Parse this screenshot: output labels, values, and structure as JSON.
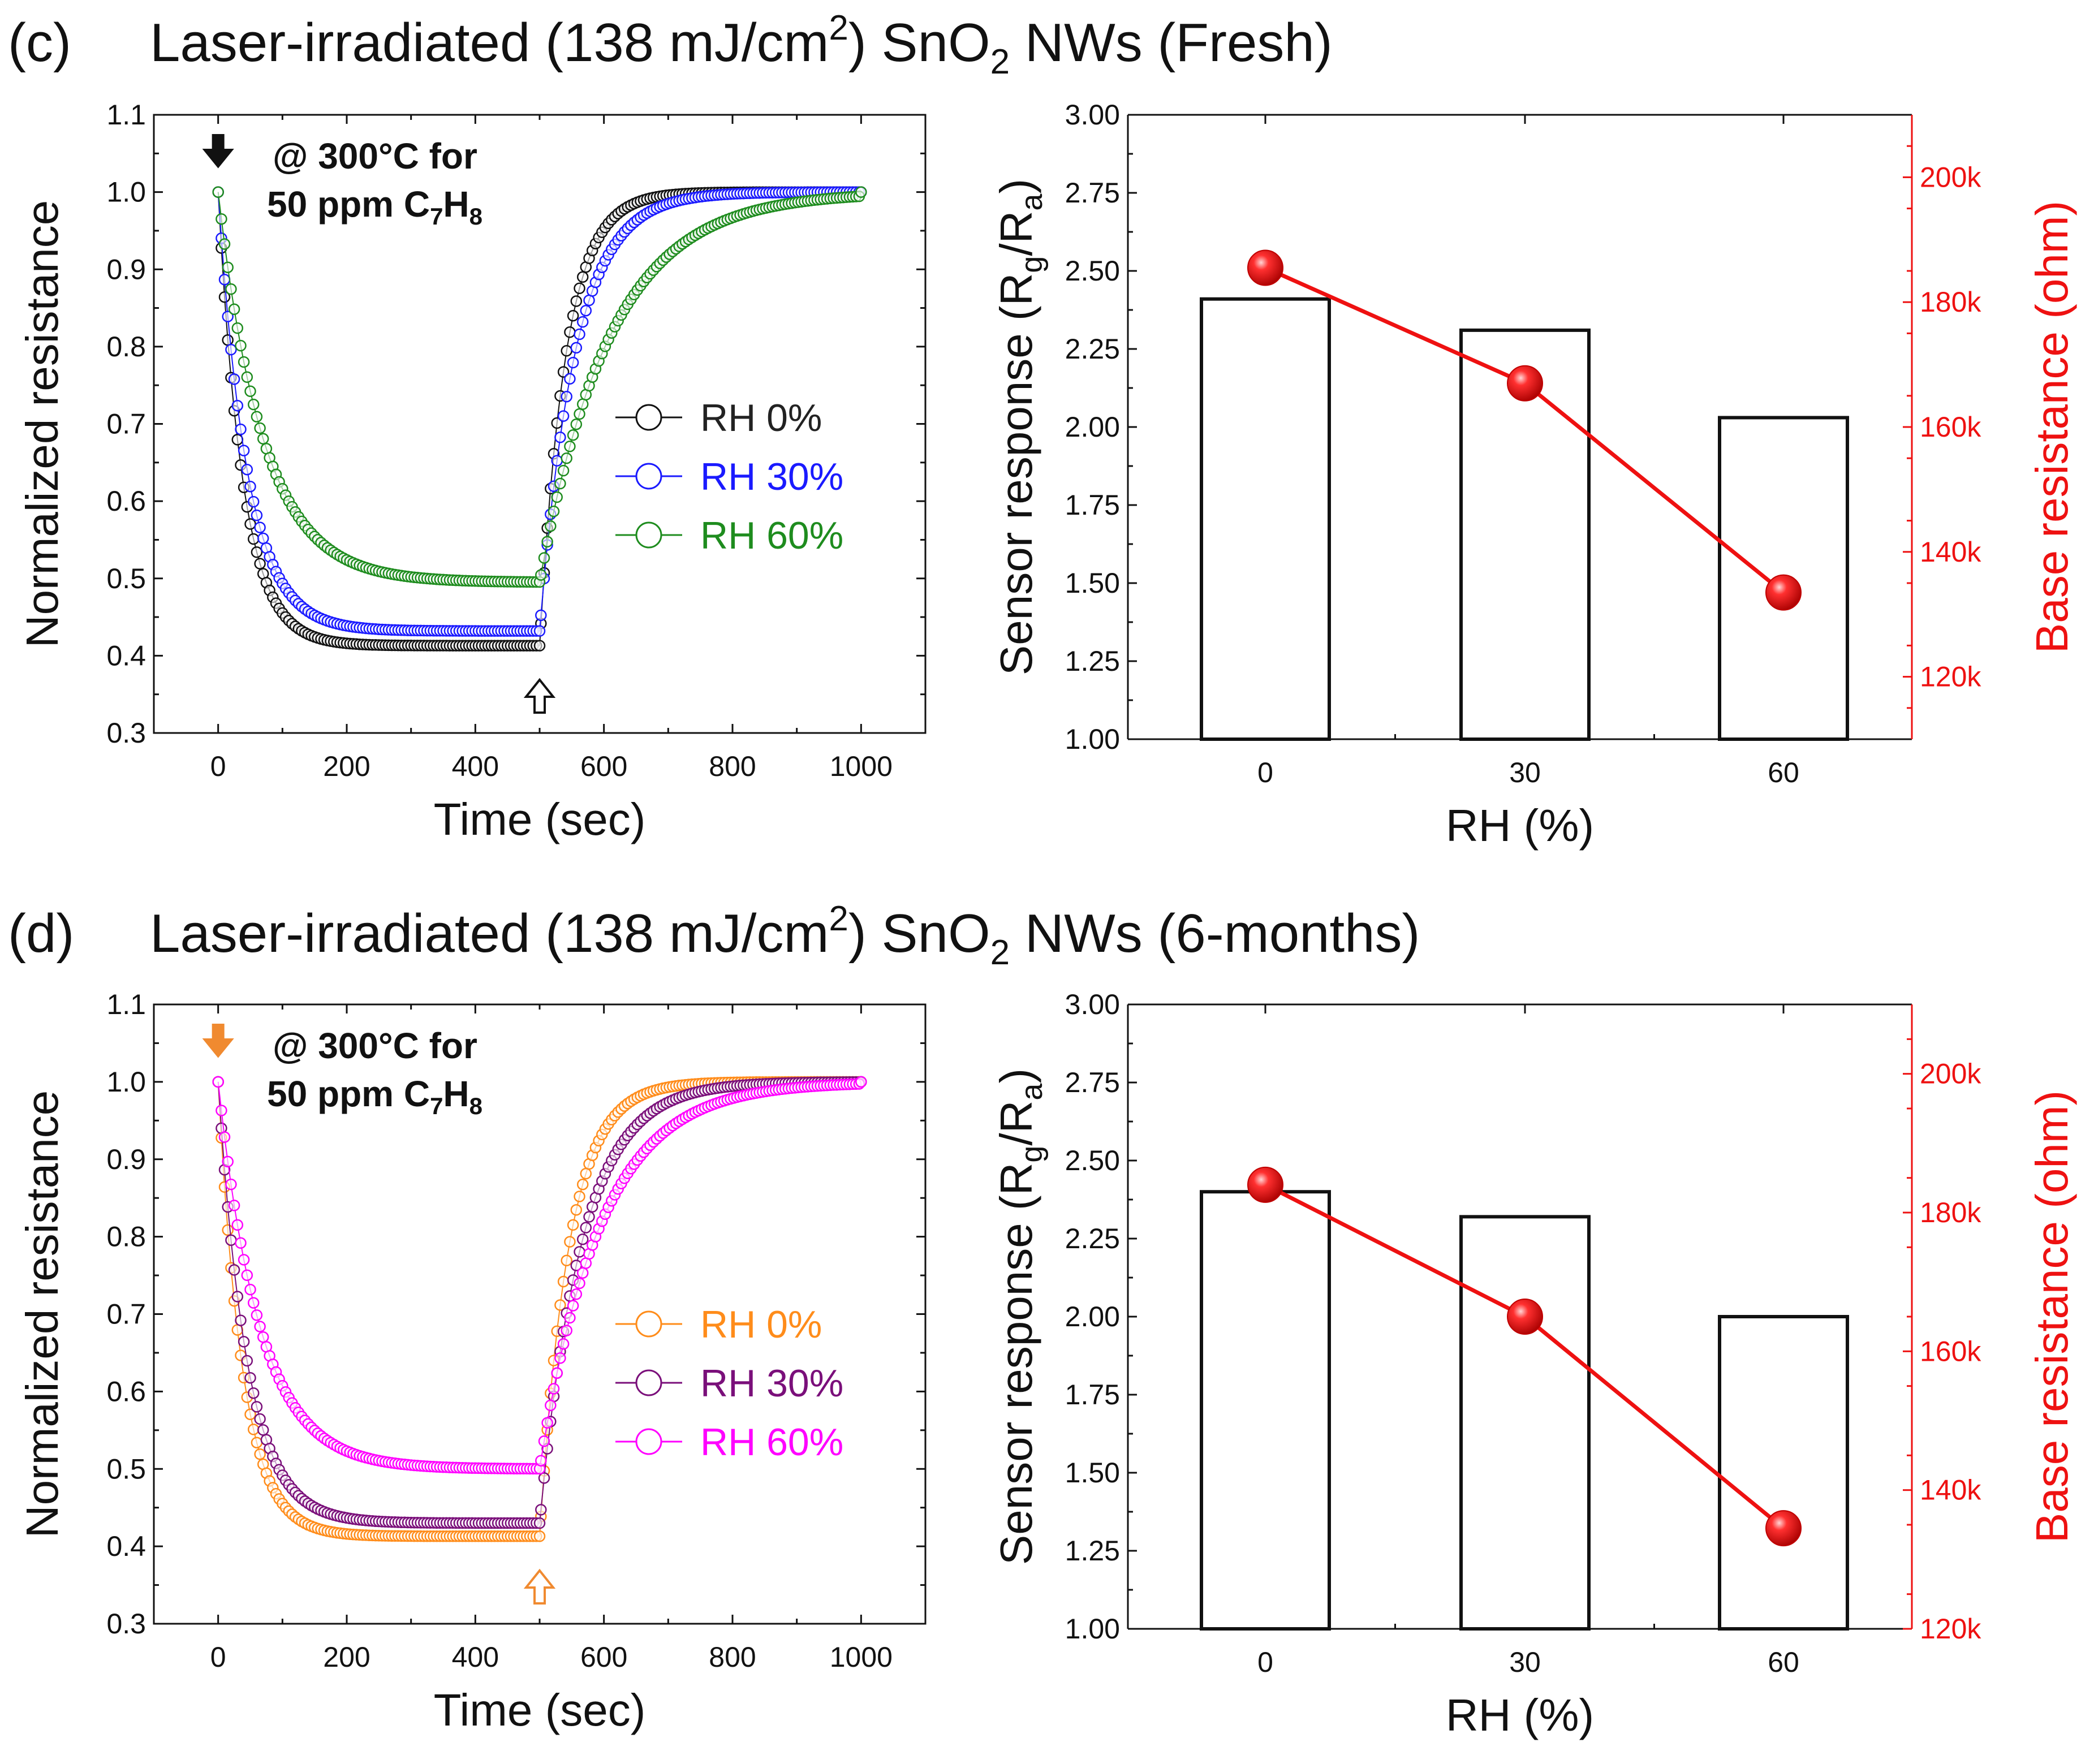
{
  "figure": {
    "rows": [
      {
        "letter": "(c)",
        "title_prefix": "Laser-irradiated (138 mJ/cm",
        "title_sup": "2",
        "title_mid1": ") SnO",
        "title_sub": "2",
        "title_mid2": " NWs",
        "title_suffix": "(Fresh)"
      },
      {
        "letter": "(d)",
        "title_prefix": "Laser-irradiated (138 mJ/cm",
        "title_sup": "2",
        "title_mid1": ") SnO",
        "title_sub": "2",
        "title_mid2": " NWs",
        "title_suffix": "(6-months)"
      }
    ]
  },
  "chart_data": [
    {
      "id": "c-left",
      "type": "scatter",
      "title": "",
      "xlabel": "Time (sec)",
      "ylabel": "Normalized resistance",
      "xlim": [
        -100,
        1100
      ],
      "ylim": [
        0.3,
        1.1
      ],
      "xticks": [
        0,
        200,
        400,
        600,
        800,
        1000
      ],
      "yticks": [
        0.3,
        0.4,
        0.5,
        0.6,
        0.7,
        0.8,
        0.9,
        1.0,
        1.1
      ],
      "ytick_labels": [
        "0.3",
        "0.4",
        "0.5",
        "0.6",
        "0.7",
        "0.8",
        "0.9",
        "1.0",
        "1.1"
      ],
      "annotation_line1": "@ 300°C for",
      "annotation_line2_prefix": "50 ppm C",
      "annotation_sub1": "7",
      "annotation_mid": "H",
      "annotation_sub2": "8",
      "gas_in_time": 0,
      "gas_out_time": 500,
      "arrow_color": "#111111",
      "legend_position": "center-right",
      "series": [
        {
          "name": "RH 0%",
          "color": "#111111",
          "label_color": "#222222",
          "baseline": 0.413,
          "tau_fall": 38,
          "tau_rise": 40
        },
        {
          "name": "RH 30%",
          "color": "#1a1aff",
          "label_color": "#1a1aff",
          "baseline": 0.432,
          "tau_fall": 45,
          "tau_rise": 55
        },
        {
          "name": "RH 60%",
          "color": "#1e8c1e",
          "label_color": "#1e8c1e",
          "baseline": 0.495,
          "tau_fall": 70,
          "tau_rise": 110
        }
      ]
    },
    {
      "id": "c-right",
      "type": "bar",
      "xlabel": "RH (%)",
      "ylabel_prefix": "Sensor response (R",
      "ylabel_sub1": "g",
      "ylabel_mid": "/R",
      "ylabel_sub2": "a",
      "ylabel_suffix": ")",
      "y2label": "Base resistance (ohm)",
      "categories": [
        "0",
        "30",
        "60"
      ],
      "values": [
        2.41,
        2.31,
        2.03
      ],
      "ylim": [
        1.0,
        3.0
      ],
      "yticks": [
        1.0,
        1.25,
        1.5,
        1.75,
        2.0,
        2.25,
        2.5,
        2.75,
        3.0
      ],
      "ytick_labels": [
        "1.00",
        "1.25",
        "1.50",
        "1.75",
        "2.00",
        "2.25",
        "2.50",
        "2.75",
        "3.00"
      ],
      "y2lim": [
        110000,
        210000
      ],
      "y2ticks": [
        120000,
        140000,
        160000,
        180000,
        200000
      ],
      "y2tick_labels": [
        "120k",
        "140k",
        "160k",
        "180k",
        "200k"
      ],
      "line_values": [
        185500,
        167000,
        133500
      ],
      "line_color": "#ee1111"
    },
    {
      "id": "d-left",
      "type": "scatter",
      "title": "",
      "xlabel": "Time (sec)",
      "ylabel": "Normalized resistance",
      "xlim": [
        -100,
        1100
      ],
      "ylim": [
        0.3,
        1.1
      ],
      "xticks": [
        0,
        200,
        400,
        600,
        800,
        1000
      ],
      "yticks": [
        0.3,
        0.4,
        0.5,
        0.6,
        0.7,
        0.8,
        0.9,
        1.0,
        1.1
      ],
      "ytick_labels": [
        "0.3",
        "0.4",
        "0.5",
        "0.6",
        "0.7",
        "0.8",
        "0.9",
        "1.0",
        "1.1"
      ],
      "annotation_line1": "@ 300°C for",
      "annotation_line2_prefix": "50 ppm C",
      "annotation_sub1": "7",
      "annotation_mid": "H",
      "annotation_sub2": "8",
      "gas_in_time": 0,
      "gas_out_time": 500,
      "arrow_color": "#f08a30",
      "legend_position": "center-right",
      "series": [
        {
          "name": "RH 0%",
          "color": "#ff8c1a",
          "label_color": "#ff8c1a",
          "baseline": 0.413,
          "tau_fall": 38,
          "tau_rise": 45
        },
        {
          "name": "RH 30%",
          "color": "#7a0f7a",
          "label_color": "#7a0f7a",
          "baseline": 0.43,
          "tau_fall": 45,
          "tau_rise": 65
        },
        {
          "name": "RH 60%",
          "color": "#ff00ff",
          "label_color": "#ff00ff",
          "baseline": 0.5,
          "tau_fall": 65,
          "tau_rise": 95
        }
      ]
    },
    {
      "id": "d-right",
      "type": "bar",
      "xlabel": "RH (%)",
      "ylabel_prefix": "Sensor response (R",
      "ylabel_sub1": "g",
      "ylabel_mid": "/R",
      "ylabel_sub2": "a",
      "ylabel_suffix": ")",
      "y2label": "Base resistance (ohm)",
      "categories": [
        "0",
        "30",
        "60"
      ],
      "values": [
        2.4,
        2.32,
        2.0
      ],
      "ylim": [
        1.0,
        3.0
      ],
      "yticks": [
        1.0,
        1.25,
        1.5,
        1.75,
        2.0,
        2.25,
        2.5,
        2.75,
        3.0
      ],
      "ytick_labels": [
        "1.00",
        "1.25",
        "1.50",
        "1.75",
        "2.00",
        "2.25",
        "2.50",
        "2.75",
        "3.00"
      ],
      "y2lim": [
        120000,
        210000
      ],
      "y2ticks": [
        120000,
        140000,
        160000,
        180000,
        200000
      ],
      "y2tick_labels": [
        "120k",
        "140k",
        "160k",
        "180k",
        "200k"
      ],
      "line_values": [
        184000,
        165000,
        134500
      ],
      "line_color": "#ee1111"
    }
  ]
}
